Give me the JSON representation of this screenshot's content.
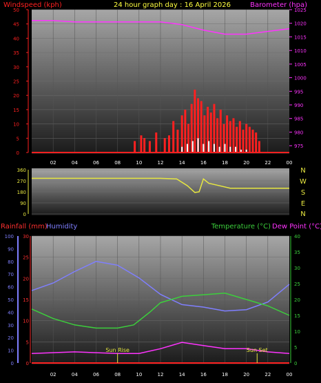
{
  "header": {
    "left": "Windspeed (kph)",
    "center": "24 hour graph day : 16 April 2026",
    "right": "Barometer (hpa)"
  },
  "colors": {
    "wind": "#ff2020",
    "gust": "#ffffff",
    "barometer": "#ff33ff",
    "direction": "#e8e840",
    "rain_axis": "#ff3030",
    "humidity": "#7f7fff",
    "temperature": "#3ccf3c",
    "dewpoint": "#ff33ff",
    "sun": "#e8e840"
  },
  "panel2": {
    "compass": [
      "N",
      "W",
      "S",
      "E",
      "N"
    ]
  },
  "panel3": {
    "rain_label": "Rainfall (mm)",
    "humidity_label": "Humidity",
    "temp_label": "Temperature (°C)",
    "dew_label": "Dew Point (°C)",
    "sunrise_label": "Sun Rise",
    "sunset_label": "Sun Set"
  },
  "chart_data": [
    {
      "type": "line",
      "subject": "wind-and-barometer",
      "xlabel": "",
      "x_ticks": [
        "02",
        "04",
        "06",
        "08",
        "10",
        "12",
        "14",
        "16",
        "18",
        "20",
        "22",
        "00"
      ],
      "x_range_hours": [
        0,
        24
      ],
      "left_axis": {
        "label": "Windspeed (kph)",
        "range": [
          0,
          50
        ],
        "ticks": [
          0,
          5,
          10,
          15,
          20,
          25,
          30,
          35,
          40,
          45,
          50
        ]
      },
      "right_axis": {
        "label": "Barometer (hpa)",
        "range": [
          972.5,
          1025
        ],
        "ticks": [
          975,
          980,
          985,
          990,
          995,
          1000,
          1005,
          1010,
          1015,
          1020,
          1025
        ]
      },
      "series": [
        {
          "name": "Windspeed (kph)",
          "axis": "left",
          "hours": [
            9.6,
            10.2,
            10.5,
            11.0,
            11.6,
            12.4,
            12.8,
            13.2,
            13.6,
            14.0,
            14.3,
            14.6,
            14.9,
            15.2,
            15.5,
            15.8,
            16.1,
            16.4,
            16.7,
            17.0,
            17.3,
            17.6,
            17.9,
            18.2,
            18.5,
            18.8,
            19.1,
            19.4,
            19.7,
            20.0,
            20.3,
            20.6,
            20.9,
            21.2
          ],
          "values": [
            4,
            6,
            5,
            4,
            7,
            5,
            6,
            11,
            8,
            13,
            15,
            10,
            17,
            22,
            19,
            18,
            13,
            16,
            14,
            17,
            12,
            15,
            10,
            13,
            11,
            12,
            9,
            11,
            8,
            10,
            9,
            8,
            7,
            4
          ]
        },
        {
          "name": "Gust",
          "axis": "left",
          "hours": [
            14.0,
            14.5,
            15.0,
            15.5,
            16.0,
            16.5,
            17.0,
            17.5,
            18.0,
            18.5,
            19.0,
            19.5,
            20.0
          ],
          "values": [
            2,
            3,
            4,
            5,
            3,
            4,
            3,
            2,
            3,
            2,
            2,
            1,
            1
          ]
        },
        {
          "name": "Barometer (hpa)",
          "axis": "right",
          "hours": [
            0,
            2,
            4,
            6,
            8,
            10,
            12,
            14,
            16,
            18,
            20,
            22,
            24
          ],
          "values": [
            1021,
            1021,
            1020.5,
            1020.5,
            1020.5,
            1020.5,
            1020.5,
            1019.5,
            1017.5,
            1016,
            1016,
            1017,
            1018
          ]
        }
      ]
    },
    {
      "type": "line",
      "subject": "wind-direction",
      "x_ticks": [],
      "left_axis": {
        "label": "",
        "range": [
          0,
          360
        ],
        "ticks": [
          0,
          90,
          180,
          270,
          360
        ]
      },
      "series": [
        {
          "name": "Wind direction",
          "axis": "left",
          "hours": [
            0,
            12,
            13.5,
            14.5,
            15.2,
            15.6,
            16.0,
            16.5,
            17.0,
            18.5,
            24
          ],
          "values": [
            290,
            290,
            285,
            230,
            175,
            180,
            285,
            250,
            240,
            210,
            210
          ]
        }
      ]
    },
    {
      "type": "line",
      "subject": "rain-humidity-temperature",
      "x_ticks": [
        "02",
        "04",
        "06",
        "08",
        "10",
        "12",
        "14",
        "16",
        "18",
        "20",
        "22",
        "00"
      ],
      "x_range_hours": [
        0,
        24
      ],
      "left_outer_axis": {
        "label": "Humidity",
        "range": [
          0,
          100
        ],
        "ticks": [
          0,
          10,
          20,
          30,
          40,
          50,
          60,
          70,
          80,
          90,
          100
        ]
      },
      "left_inner_axis": {
        "label": "Rainfall (mm)",
        "range": [
          0,
          30
        ],
        "ticks": [
          0,
          5,
          10,
          15,
          20,
          25,
          30
        ]
      },
      "right_axis": {
        "label": "Temperature (°C)",
        "range": [
          0,
          40
        ],
        "ticks": [
          0,
          5,
          10,
          15,
          20,
          25,
          30,
          35,
          40
        ]
      },
      "events": [
        {
          "label": "Sun Rise",
          "hour": 8.0
        },
        {
          "label": "Sun Set",
          "hour": 21.0
        }
      ],
      "series": [
        {
          "name": "Humidity",
          "axis": "left_outer",
          "hours": [
            0,
            2,
            4,
            6,
            8,
            10,
            12,
            14,
            16,
            18,
            20,
            22,
            24
          ],
          "values": [
            57,
            63,
            72,
            80,
            77,
            67,
            54,
            46,
            44,
            41,
            42,
            48,
            62
          ]
        },
        {
          "name": "Temperature (°C)",
          "axis": "right",
          "hours": [
            0,
            2,
            4,
            6,
            8,
            9.5,
            11,
            12,
            13,
            14,
            16,
            18,
            20,
            22,
            24
          ],
          "values": [
            17,
            14,
            12,
            11,
            11,
            12,
            16,
            19,
            20,
            21,
            21.5,
            22,
            20,
            18,
            15
          ]
        },
        {
          "name": "Dew Point (°C)",
          "axis": "right",
          "hours": [
            0,
            4,
            8,
            10,
            12,
            14,
            16,
            18,
            20,
            22,
            24
          ],
          "values": [
            3,
            3.5,
            3,
            3,
            4.5,
            6.5,
            5.5,
            4.5,
            4.5,
            3.5,
            3
          ]
        }
      ]
    }
  ]
}
